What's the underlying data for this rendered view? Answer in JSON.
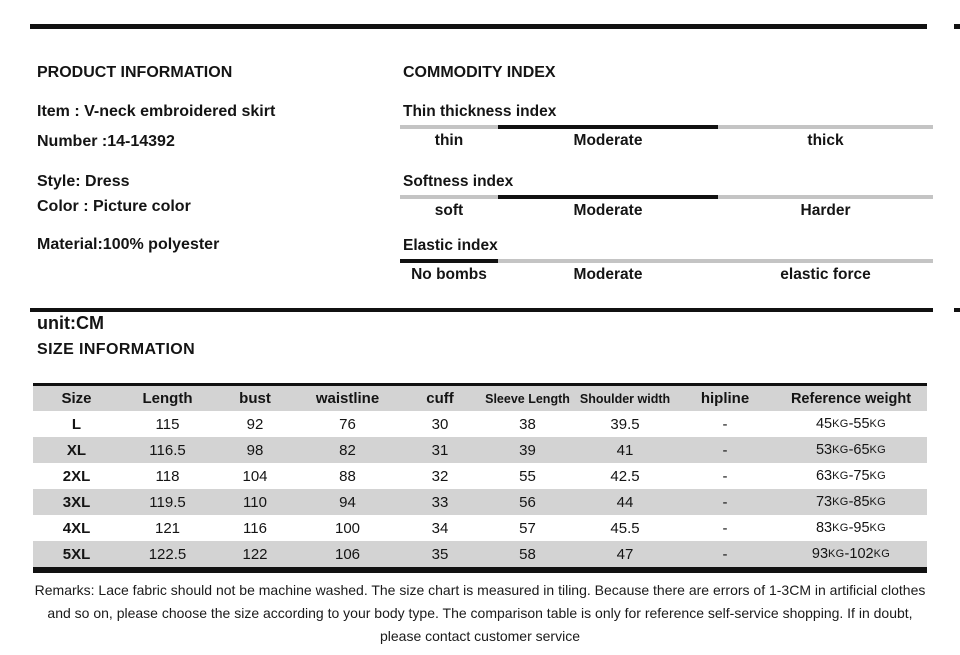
{
  "product_info": {
    "title": "PRODUCT INFORMATION",
    "item": "Item : V-neck embroidered skirt",
    "number": "Number :14-14392",
    "style": "Style: Dress",
    "color": "Color : Picture color",
    "material": "Material:100% polyester"
  },
  "commodity_index": {
    "title": "COMMODITY INDEX",
    "indexes": [
      {
        "name": "Thin thickness index",
        "labels": [
          "thin",
          "Moderate",
          "thick"
        ],
        "active_segment": 1
      },
      {
        "name": "Softness index",
        "labels": [
          "soft",
          "Moderate",
          "Harder"
        ],
        "active_segment": 1
      },
      {
        "name": "Elastic index",
        "labels": [
          "No bombs",
          "Moderate",
          "elastic force"
        ],
        "active_segment": 0
      }
    ]
  },
  "size_info": {
    "unit_label": "unit:CM",
    "title": "SIZE INFORMATION",
    "table": {
      "headers": [
        "Size",
        "Length",
        "bust",
        "waistline",
        "cuff",
        "Sleeve Length",
        "Shoulder width",
        "hipline",
        "Reference weight"
      ],
      "rows": [
        [
          "L",
          "115",
          "92",
          "76",
          "30",
          "38",
          "39.5",
          "-",
          "45KG-55KG"
        ],
        [
          "XL",
          "116.5",
          "98",
          "82",
          "31",
          "39",
          "41",
          "-",
          "53KG-65KG"
        ],
        [
          "2XL",
          "118",
          "104",
          "88",
          "32",
          "55",
          "42.5",
          "-",
          "63KG-75KG"
        ],
        [
          "3XL",
          "119.5",
          "110",
          "94",
          "33",
          "56",
          "44",
          "-",
          "73KG-85KG"
        ],
        [
          "4XL",
          "121",
          "116",
          "100",
          "34",
          "57",
          "45.5",
          "-",
          "83KG-95KG"
        ],
        [
          "5XL",
          "122.5",
          "122",
          "106",
          "35",
          "58",
          "47",
          "-",
          "93KG-102KG"
        ]
      ]
    }
  },
  "remarks": {
    "lines": [
      "Remarks: Lace fabric should not be machine washed. The size chart is measured in tiling. Because there are errors of 1-3CM in artificial clothes",
      "and so on, please choose the size according to your body type. The comparison table is only for reference self-service shopping. If in doubt,",
      "please contact customer service"
    ]
  },
  "colors": {
    "rule_black": "#111111",
    "bar_gray": "#c4c4c4",
    "bar_active": "#111111",
    "stripe_gray": "#d3d3d3",
    "text": "#141414"
  }
}
